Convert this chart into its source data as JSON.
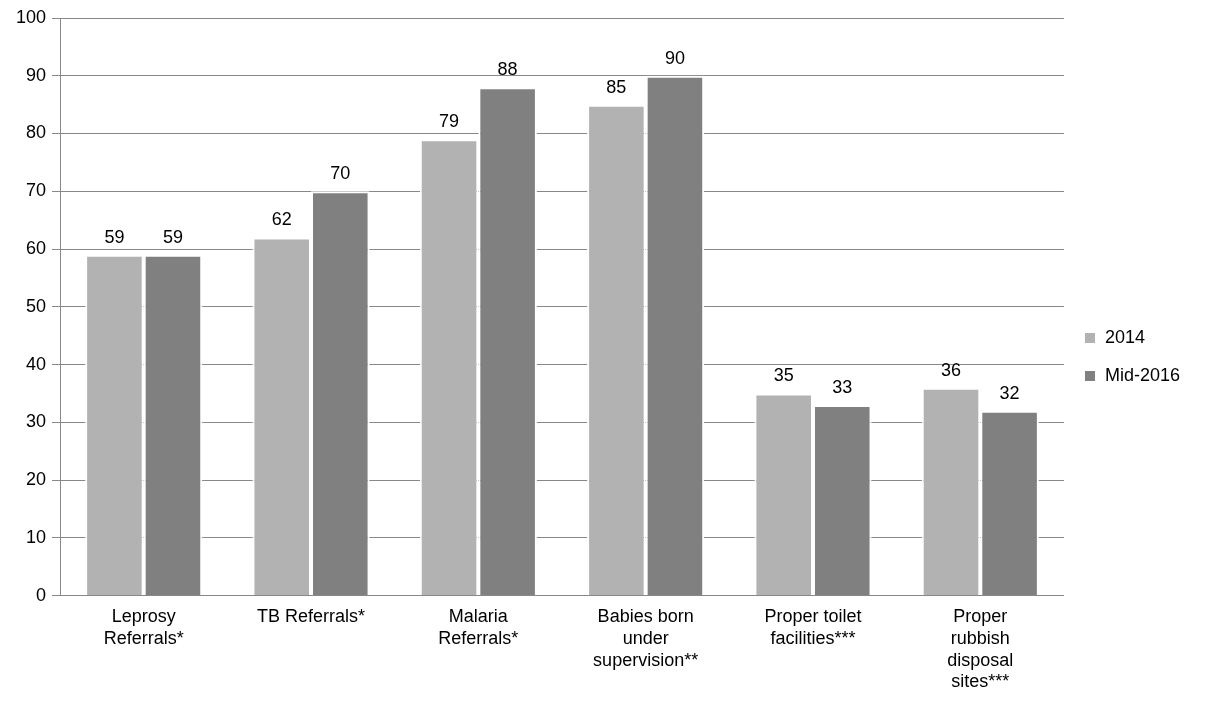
{
  "chart_data": {
    "type": "bar",
    "categories": [
      "Leprosy Referrals*",
      "TB Referrals*",
      "Malaria Referrals*",
      "Babies born under supervision**",
      "Proper toilet facilities***",
      "Proper rubbish disposal sites***"
    ],
    "series": [
      {
        "name": "2014",
        "color": "#b2b2b2",
        "values": [
          59,
          62,
          79,
          85,
          35,
          36
        ]
      },
      {
        "name": "Mid-2016",
        "color": "#808080",
        "values": [
          59,
          70,
          88,
          90,
          33,
          32
        ]
      }
    ],
    "ylim": [
      0,
      100
    ],
    "yticks": [
      0,
      10,
      20,
      30,
      40,
      50,
      60,
      70,
      80,
      90,
      100
    ],
    "grid": "y",
    "legend": "right",
    "data_labels": true
  }
}
